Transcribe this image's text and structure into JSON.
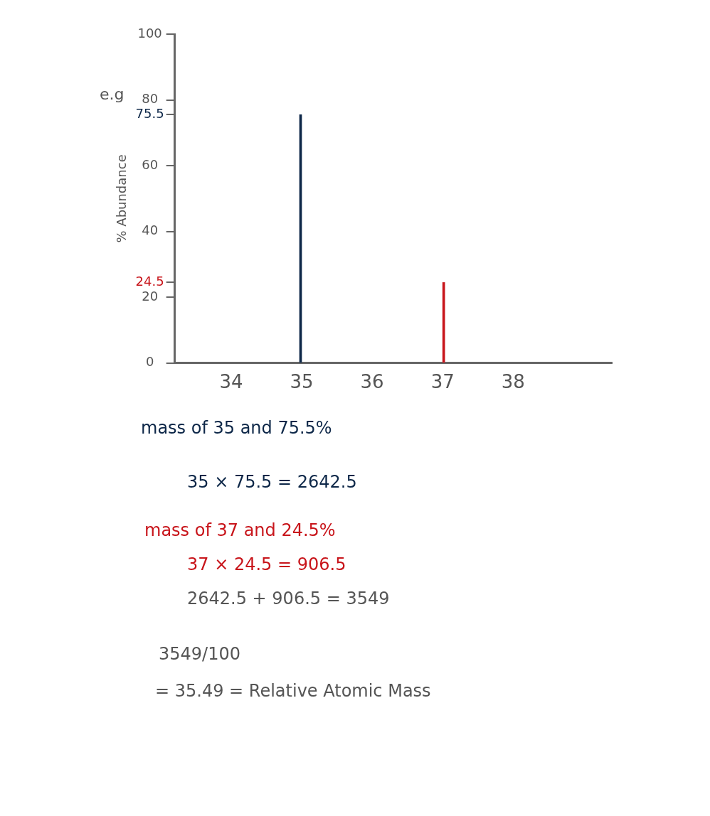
{
  "chart_data": {
    "type": "bar",
    "ylabel": "% Abundance",
    "series": [
      {
        "color": "#0d2748",
        "x": [
          35
        ],
        "values": [
          75.5
        ]
      },
      {
        "color": "#c8151b",
        "x": [
          37
        ],
        "values": [
          24.5
        ]
      }
    ],
    "xlim": [
      33.2,
      39.4
    ],
    "xticks": [
      34,
      35,
      36,
      37,
      38
    ],
    "ylim": [
      0,
      100
    ],
    "yticks": [
      0,
      20,
      24.5,
      40,
      60,
      75.5,
      80,
      100
    ],
    "grid": false,
    "legend": false,
    "annotations": [
      "e.g",
      "mass of 35 and 75.5%",
      "35 × 75.5 = 2642.5",
      "mass of 37 and 24.5%",
      "37 × 24.5 = 906.5",
      "2642.5 + 906.5 = 3549",
      "3549/100",
      "= 35.49 = Relative Atomic Mass"
    ]
  }
}
